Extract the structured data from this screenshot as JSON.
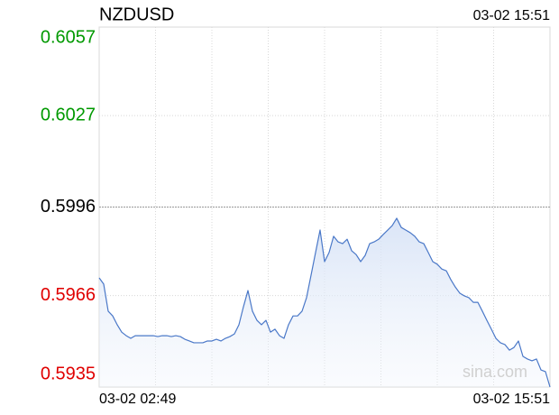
{
  "chart_data": {
    "type": "line",
    "title": "NZDUSD",
    "time": "03-02 15:51",
    "watermark": "sina.com",
    "categories": [
      "03-02 02:49",
      null,
      null,
      null,
      null,
      null,
      null,
      null,
      null,
      null,
      null,
      null,
      null,
      null,
      null,
      null,
      null,
      null,
      null,
      null,
      null,
      null,
      null,
      null,
      null,
      null,
      null,
      null,
      null,
      null,
      null,
      null,
      null,
      null,
      null,
      null,
      null,
      null,
      null,
      null,
      null,
      null,
      null,
      null,
      null,
      null,
      null,
      null,
      null,
      null,
      null,
      null,
      null,
      null,
      null,
      null,
      null,
      null,
      null,
      null,
      null,
      null,
      null,
      null,
      null,
      null,
      null,
      null,
      null,
      null,
      null,
      null,
      null,
      null,
      null,
      null,
      null,
      null,
      null,
      null,
      null,
      null,
      null,
      null,
      null,
      null,
      null,
      null,
      null,
      null,
      null,
      null,
      null,
      null,
      null,
      null,
      null,
      null,
      null,
      null,
      "03-02 15:51"
    ],
    "values": [
      0.5972,
      0.59699,
      0.59607,
      0.59591,
      0.59561,
      0.59536,
      0.59524,
      0.59515,
      0.59524,
      0.59524,
      0.59524,
      0.59524,
      0.59524,
      0.59521,
      0.59524,
      0.59524,
      0.59521,
      0.59524,
      0.59521,
      0.59512,
      0.59506,
      0.595,
      0.595,
      0.595,
      0.59506,
      0.59506,
      0.59512,
      0.59506,
      0.59515,
      0.59521,
      0.5953,
      0.59561,
      0.59622,
      0.59677,
      0.59607,
      0.59576,
      0.59561,
      0.59576,
      0.59536,
      0.59546,
      0.59524,
      0.59515,
      0.59561,
      0.59591,
      0.59591,
      0.59607,
      0.59653,
      0.59729,
      0.59806,
      0.59882,
      0.59775,
      0.59806,
      0.59861,
      0.59842,
      0.59836,
      0.59851,
      0.59812,
      0.59799,
      0.59775,
      0.59796,
      0.59836,
      0.59842,
      0.59851,
      0.59867,
      0.59882,
      0.59897,
      0.59922,
      0.59891,
      0.59882,
      0.59873,
      0.59861,
      0.59842,
      0.59836,
      0.59806,
      0.59775,
      0.59766,
      0.5975,
      0.59744,
      0.59714,
      0.59689,
      0.59668,
      0.59659,
      0.59653,
      0.59637,
      0.59637,
      0.59607,
      0.59576,
      0.59546,
      0.59515,
      0.595,
      0.59494,
      0.59475,
      0.59484,
      0.59506,
      0.59454,
      0.59445,
      0.59439,
      0.59445,
      0.59408,
      0.59402,
      0.5935
    ],
    "color": "#4a78c8",
    "ylim": [
      0.5935,
      0.6057
    ],
    "yticks": [
      0.6057,
      0.6027,
      0.5996,
      0.5966,
      0.5935
    ],
    "ytick_colors": [
      "#009900",
      "#009900",
      "#000000",
      "#e00000",
      "#e00000"
    ],
    "grid": true
  }
}
